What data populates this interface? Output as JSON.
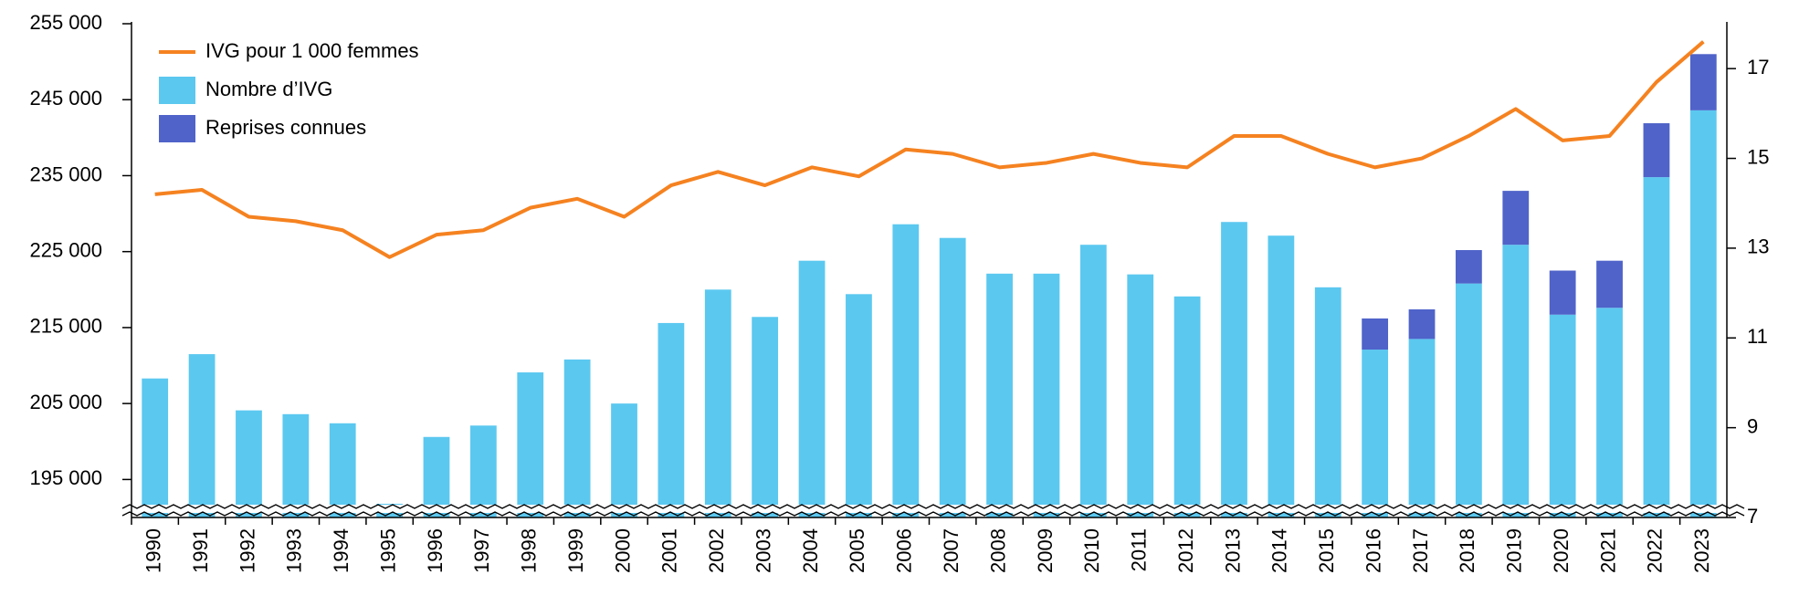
{
  "chart_data": {
    "type": "bar",
    "categories": [
      "1990",
      "1991",
      "1992",
      "1993",
      "1994",
      "1995",
      "1996",
      "1997",
      "1998",
      "1999",
      "2000",
      "2001",
      "2002",
      "2003",
      "2004",
      "2005",
      "2006",
      "2007",
      "2008",
      "2009",
      "2010",
      "2011",
      "2012",
      "2013",
      "2014",
      "2015",
      "2016",
      "2017",
      "2018",
      "2019",
      "2020",
      "2021",
      "2022",
      "2023"
    ],
    "series": [
      {
        "name": "IVG pour 1 000 femmes",
        "type": "line",
        "axis": "y2",
        "color": "#f58220",
        "values": [
          14.2,
          14.3,
          13.7,
          13.6,
          13.4,
          12.8,
          13.3,
          13.4,
          13.9,
          14.1,
          13.7,
          14.4,
          14.7,
          14.4,
          14.8,
          14.6,
          15.2,
          15.1,
          14.8,
          14.9,
          15.1,
          14.9,
          14.8,
          15.5,
          15.5,
          15.1,
          14.8,
          15.0,
          15.5,
          16.1,
          15.4,
          15.5,
          16.7,
          17.6
        ]
      },
      {
        "name": "Nombre d’IVG",
        "type": "bar",
        "color": "#5bc8f0",
        "values": [
          208300,
          211500,
          204100,
          203600,
          202400,
          191800,
          200600,
          202100,
          209100,
          210800,
          205000,
          215600,
          220000,
          216400,
          223800,
          219400,
          228600,
          226800,
          222100,
          222100,
          225900,
          222000,
          219100,
          228900,
          227100,
          220300,
          212100,
          213500,
          220800,
          225900,
          216700,
          217600,
          234800,
          243600
        ]
      },
      {
        "name": "Reprises connues",
        "type": "bar",
        "color": "#4f63c9",
        "values": [
          null,
          null,
          null,
          null,
          null,
          null,
          null,
          null,
          null,
          null,
          null,
          null,
          null,
          null,
          null,
          null,
          null,
          null,
          null,
          null,
          null,
          null,
          null,
          null,
          null,
          null,
          4100,
          3900,
          4400,
          7100,
          5800,
          6200,
          7100,
          7400
        ]
      }
    ],
    "ylim": [
      190000,
      255000
    ],
    "yticks": [
      {
        "value": 195000,
        "label": "195 000"
      },
      {
        "value": 205000,
        "label": "205 000"
      },
      {
        "value": 215000,
        "label": "215 000"
      },
      {
        "value": 225000,
        "label": "225 000"
      },
      {
        "value": 235000,
        "label": "235 000"
      },
      {
        "value": 245000,
        "label": "245 000"
      },
      {
        "value": 255000,
        "label": "255 000"
      }
    ],
    "y2lim": [
      7,
      18
    ],
    "y2ticks": [
      7,
      9,
      11,
      13,
      15,
      17
    ],
    "legend": "top-left"
  }
}
